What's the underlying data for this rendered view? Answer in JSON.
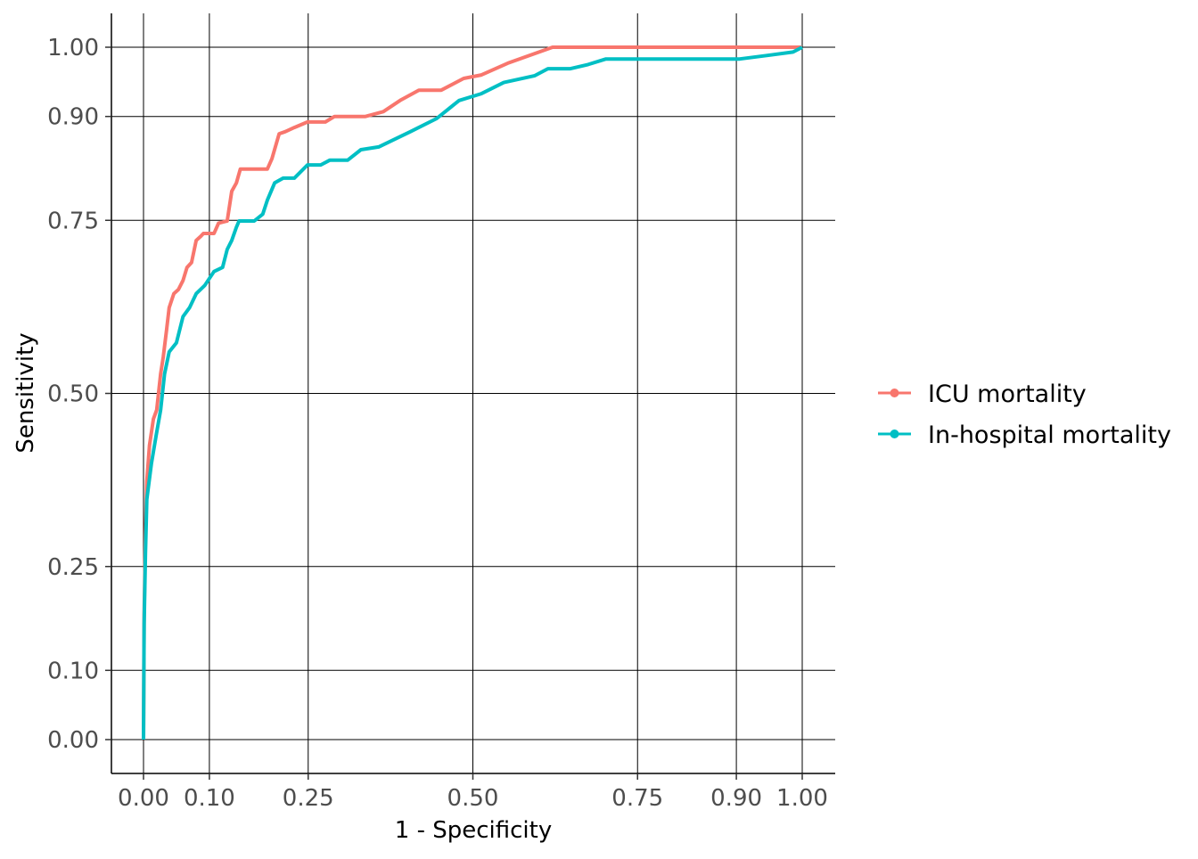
{
  "chart_data": {
    "type": "line",
    "title": "",
    "xlabel": "1 - Specificity",
    "ylabel": "Sensitivity",
    "xlim": [
      0,
      1
    ],
    "ylim": [
      0,
      1
    ],
    "x_ticks": [
      0,
      0.1,
      0.25,
      0.5,
      0.75,
      0.9,
      1
    ],
    "x_tick_labels": [
      "0.00",
      "0.10",
      "0.25",
      "0.50",
      "0.75",
      "0.90",
      "1.00"
    ],
    "y_ticks": [
      0,
      0.1,
      0.25,
      0.5,
      0.75,
      0.9,
      1
    ],
    "y_tick_labels": [
      "0.00",
      "0.10",
      "0.25",
      "0.50",
      "0.75",
      "0.90",
      "1.00"
    ],
    "grid": true,
    "legend_position": "right",
    "series": [
      {
        "name": "ICU mortality",
        "color": "#F8766D",
        "x": [
          0,
          0.001,
          0.003,
          0.005,
          0.009,
          0.015,
          0.02,
          0.026,
          0.03,
          0.035,
          0.039,
          0.046,
          0.053,
          0.06,
          0.066,
          0.073,
          0.08,
          0.087,
          0.091,
          0.107,
          0.114,
          0.127,
          0.134,
          0.141,
          0.147,
          0.188,
          0.195,
          0.206,
          0.215,
          0.229,
          0.249,
          0.276,
          0.29,
          0.337,
          0.364,
          0.391,
          0.418,
          0.452,
          0.486,
          0.513,
          0.553,
          0.621,
          1
        ],
        "y": [
          0,
          0.18,
          0.296,
          0.373,
          0.425,
          0.463,
          0.476,
          0.528,
          0.553,
          0.592,
          0.624,
          0.644,
          0.65,
          0.663,
          0.682,
          0.689,
          0.721,
          0.727,
          0.731,
          0.731,
          0.746,
          0.749,
          0.792,
          0.804,
          0.824,
          0.824,
          0.839,
          0.875,
          0.878,
          0.884,
          0.892,
          0.892,
          0.9,
          0.9,
          0.907,
          0.924,
          0.938,
          0.938,
          0.955,
          0.96,
          0.977,
          1,
          1
        ]
      },
      {
        "name": "In-hospital mortality",
        "color": "#00BFC4",
        "x": [
          0,
          0.001,
          0.003,
          0.005,
          0.012,
          0.019,
          0.026,
          0.032,
          0.039,
          0.05,
          0.06,
          0.07,
          0.08,
          0.093,
          0.107,
          0.12,
          0.127,
          0.134,
          0.141,
          0.145,
          0.168,
          0.181,
          0.188,
          0.199,
          0.212,
          0.229,
          0.249,
          0.269,
          0.283,
          0.31,
          0.33,
          0.357,
          0.405,
          0.445,
          0.479,
          0.513,
          0.547,
          0.594,
          0.614,
          0.648,
          0.675,
          0.702,
          0.905,
          0.946,
          0.986,
          1
        ],
        "y": [
          0,
          0.167,
          0.27,
          0.347,
          0.399,
          0.438,
          0.476,
          0.528,
          0.56,
          0.573,
          0.611,
          0.624,
          0.644,
          0.656,
          0.676,
          0.682,
          0.708,
          0.721,
          0.74,
          0.749,
          0.749,
          0.759,
          0.779,
          0.804,
          0.811,
          0.811,
          0.83,
          0.83,
          0.837,
          0.837,
          0.852,
          0.856,
          0.878,
          0.897,
          0.923,
          0.933,
          0.949,
          0.959,
          0.969,
          0.969,
          0.975,
          0.983,
          0.983,
          0.988,
          0.993,
          1
        ]
      }
    ]
  }
}
